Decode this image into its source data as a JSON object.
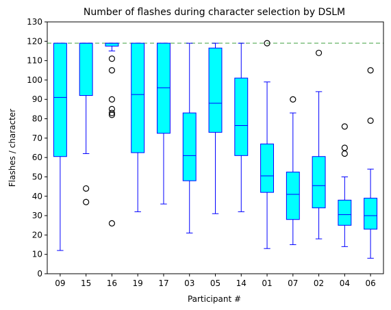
{
  "chart_data": {
    "type": "box",
    "title": "Number of flashes during character selection by DSLM",
    "xlabel": "Participant #",
    "ylabel": "Flashes / character",
    "ylim": [
      0,
      130
    ],
    "yticks": [
      0,
      10,
      20,
      30,
      40,
      50,
      60,
      70,
      80,
      90,
      100,
      110,
      120,
      130
    ],
    "reference_line": {
      "y": 119,
      "style": "dashed",
      "color": "#7fbf7f"
    },
    "colors": {
      "box_fill": "#00ffff",
      "box_edge": "#0000ff",
      "median": "#0000ff",
      "whisker": "#0000ff",
      "outlier_edge": "#000000"
    },
    "categories": [
      "09",
      "15",
      "16",
      "19",
      "17",
      "03",
      "05",
      "14",
      "01",
      "07",
      "02",
      "04",
      "06"
    ],
    "boxes": [
      {
        "label": "09",
        "whislo": 12,
        "q1": 60.5,
        "med": 91,
        "q3": 119,
        "whishi": 119,
        "fliers": []
      },
      {
        "label": "15",
        "whislo": 62,
        "q1": 92,
        "med": 119,
        "q3": 119,
        "whishi": 119,
        "fliers": [
          44,
          37
        ]
      },
      {
        "label": "16",
        "whislo": 115,
        "q1": 117.5,
        "med": 119,
        "q3": 119,
        "whishi": 119,
        "fliers": [
          111,
          105,
          90,
          85,
          83,
          82,
          26
        ]
      },
      {
        "label": "19",
        "whislo": 32,
        "q1": 62.5,
        "med": 92.5,
        "q3": 119,
        "whishi": 119,
        "fliers": []
      },
      {
        "label": "17",
        "whislo": 36,
        "q1": 72.5,
        "med": 96,
        "q3": 119,
        "whishi": 119,
        "fliers": []
      },
      {
        "label": "03",
        "whislo": 21,
        "q1": 48,
        "med": 61,
        "q3": 83,
        "whishi": 119,
        "fliers": []
      },
      {
        "label": "05",
        "whislo": 31,
        "q1": 73,
        "med": 88,
        "q3": 116.5,
        "whishi": 119,
        "fliers": []
      },
      {
        "label": "14",
        "whislo": 32,
        "q1": 61,
        "med": 76.5,
        "q3": 101,
        "whishi": 119,
        "fliers": []
      },
      {
        "label": "01",
        "whislo": 13,
        "q1": 42,
        "med": 50.5,
        "q3": 67,
        "whishi": 99,
        "fliers": [
          119
        ]
      },
      {
        "label": "07",
        "whislo": 15,
        "q1": 28,
        "med": 41,
        "q3": 52.5,
        "whishi": 83,
        "fliers": [
          90
        ]
      },
      {
        "label": "02",
        "whislo": 18,
        "q1": 34,
        "med": 45.5,
        "q3": 60.5,
        "whishi": 94,
        "fliers": [
          114
        ]
      },
      {
        "label": "04",
        "whislo": 14,
        "q1": 25,
        "med": 30.5,
        "q3": 38,
        "whishi": 50,
        "fliers": [
          76,
          65,
          62
        ]
      },
      {
        "label": "06",
        "whislo": 8,
        "q1": 23,
        "med": 30,
        "q3": 39,
        "whishi": 54,
        "fliers": [
          105,
          79
        ]
      }
    ]
  }
}
